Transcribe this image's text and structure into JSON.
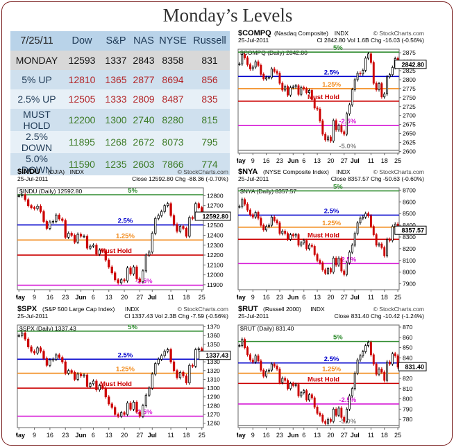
{
  "title": "Monday’s Levels",
  "table": {
    "date": "7/25/11",
    "columns": [
      "Dow",
      "S&P",
      "NAS",
      "NYSE",
      "Russell"
    ],
    "rows": [
      {
        "label": "MONDAY",
        "values": [
          "12593",
          "1337",
          "2843",
          "8358",
          "831"
        ],
        "color": "#111111"
      },
      {
        "label": "5% UP",
        "values": [
          "12810",
          "1365",
          "2877",
          "8694",
          "856"
        ],
        "color": "#b3272a"
      },
      {
        "label": "2.5% UP",
        "values": [
          "12505",
          "1333",
          "2809",
          "8487",
          "835"
        ],
        "color": "#b3272a"
      },
      {
        "label": "MUST HOLD",
        "values": [
          "12200",
          "1300",
          "2740",
          "8280",
          "815"
        ],
        "color": "#3c7a25"
      },
      {
        "label": "2.5% DOWN",
        "values": [
          "11895",
          "1268",
          "2672",
          "8073",
          "795"
        ],
        "color": "#3c7a25"
      },
      {
        "label": "5.0% DOWN",
        "values": [
          "11590",
          "1235",
          "2603",
          "7866",
          "774"
        ],
        "color": "#3c7a25"
      }
    ]
  },
  "colors": {
    "level5": "#2e8b2e",
    "level2_5": "#0000cc",
    "level1_25": "#f28a1a",
    "must_hold": "#cc0000",
    "down2_5": "#d61ad6",
    "down5": "#888888",
    "up_candle": "#000000",
    "down_candle": "#cc0000"
  },
  "chart_data": [
    {
      "type": "candlestick",
      "symbol": "$COMPQ",
      "name": "(Nasdaq Composite)",
      "exchange": "INDX",
      "brand": "© StockCharts.com",
      "date": "25-Jul-2011",
      "stats": "Cl 2842.80  Vol 1.6B  Chg -16.03 (-0.56%)",
      "legend": "$COMPQ (Daily) 2842.80",
      "last_price": "2842.80",
      "yticks": [
        2600,
        2625,
        2650,
        2675,
        2700,
        2725,
        2750,
        2775,
        2800,
        2825,
        2850,
        2875
      ],
      "ylim": [
        2595,
        2885
      ],
      "xticks": [
        "May",
        "9",
        "16",
        "23",
        "Jun",
        "6",
        "13",
        "20",
        "27",
        "Jul",
        "11",
        "18",
        "25"
      ],
      "levels": [
        {
          "label": "5%",
          "value": 2877,
          "color": "#2e8b2e"
        },
        {
          "label": "2.5%",
          "value": 2809,
          "color": "#0000cc"
        },
        {
          "label": "1.25%",
          "value": 2775,
          "color": "#f28a1a"
        },
        {
          "label": "Must Hold",
          "value": 2740,
          "color": "#cc0000"
        },
        {
          "label": "-2.5%",
          "value": 2672,
          "color": "#d61ad6"
        },
        {
          "label": "-5.0%",
          "value": 2603,
          "color": "#888888"
        }
      ],
      "closes": [
        2844,
        2870,
        2861,
        2842,
        2830,
        2835,
        2850,
        2840,
        2815,
        2802,
        2806,
        2806,
        2830,
        2823,
        2818,
        2790,
        2771,
        2781,
        2757,
        2778,
        2780,
        2783,
        2759,
        2778,
        2775,
        2764,
        2770,
        2745,
        2721,
        2718,
        2685,
        2648,
        2632,
        2640,
        2629,
        2686,
        2660,
        2672,
        2655,
        2648,
        2705,
        2730,
        2772,
        2800,
        2818,
        2816,
        2826,
        2860,
        2872,
        2848,
        2790,
        2772,
        2789,
        2752,
        2760,
        2808,
        2814,
        2834,
        2859,
        2843
      ]
    },
    {
      "type": "candlestick",
      "symbol": "$INDU",
      "name": "(DJIA)",
      "exchange": "INDX",
      "brand": "© StockCharts.com",
      "date": "25-Jul-2011",
      "stats": "Close 12592.80  Chg -88.36 (-0.70%)",
      "legend": "$INDU (Daily) 12592.80",
      "last_price": "12592.80",
      "yticks": [
        11900,
        12000,
        12100,
        12200,
        12300,
        12400,
        12500,
        12600,
        12700,
        12800
      ],
      "ylim": [
        11850,
        12880
      ],
      "xticks": [
        "May",
        "9",
        "16",
        "23",
        "Jun",
        "6",
        "13",
        "20",
        "27",
        "Jul",
        "11",
        "18",
        "25"
      ],
      "levels": [
        {
          "label": "5%",
          "value": 12810,
          "color": "#2e8b2e"
        },
        {
          "label": "2.5%",
          "value": 12505,
          "color": "#0000cc"
        },
        {
          "label": "1.25%",
          "value": 12352,
          "color": "#f28a1a"
        },
        {
          "label": "Must Hold",
          "value": 12200,
          "color": "#cc0000"
        },
        {
          "label": "-2.5%",
          "value": 11895,
          "color": "#d61ad6"
        }
      ],
      "closes": [
        12800,
        12810,
        12760,
        12700,
        12680,
        12670,
        12695,
        12640,
        12540,
        12470,
        12535,
        12540,
        12605,
        12565,
        12550,
        12380,
        12420,
        12400,
        12330,
        12410,
        12390,
        12390,
        12270,
        12290,
        12300,
        12210,
        12250,
        12240,
        12150,
        12080,
        12020,
        11950,
        11920,
        11950,
        11940,
        12070,
        12010,
        12080,
        11960,
        11930,
        12040,
        12200,
        12230,
        12420,
        12570,
        12600,
        12640,
        12700,
        12720,
        12600,
        12510,
        12440,
        12490,
        12470,
        12390,
        12580,
        12570,
        12720,
        12680,
        12593
      ]
    },
    {
      "type": "candlestick",
      "symbol": "$NYA",
      "name": "(NYSE Composite Index)",
      "exchange": "INDX",
      "brand": "© StockCharts.com",
      "date": "25-Jul-2011",
      "stats": "Close 8357.57  Chg -50.63 (-0.60%)",
      "legend": "$NYA (Daily) 8357.57",
      "last_price": "8357.57",
      "yticks": [
        7900,
        8000,
        8100,
        8200,
        8300,
        8400,
        8500,
        8600,
        8700
      ],
      "ylim": [
        7850,
        8720
      ],
      "xticks": [
        "May",
        "9",
        "16",
        "23",
        "Jun",
        "6",
        "13",
        "20",
        "27",
        "Jul",
        "11",
        "18",
        "25"
      ],
      "levels": [
        {
          "label": "5%",
          "value": 8694,
          "color": "#2e8b2e"
        },
        {
          "label": "2.5%",
          "value": 8487,
          "color": "#0000cc"
        },
        {
          "label": "1.25%",
          "value": 8384,
          "color": "#f28a1a"
        },
        {
          "label": "Must Hold",
          "value": 8280,
          "color": "#cc0000"
        },
        {
          "label": "-2.5%",
          "value": 8073,
          "color": "#d61ad6"
        }
      ],
      "closes": [
        8560,
        8620,
        8580,
        8530,
        8490,
        8470,
        8510,
        8460,
        8400,
        8360,
        8390,
        8400,
        8470,
        8440,
        8420,
        8330,
        8350,
        8330,
        8280,
        8320,
        8310,
        8320,
        8230,
        8250,
        8270,
        8200,
        8230,
        8220,
        8150,
        8100,
        8080,
        8020,
        7990,
        8030,
        8000,
        8120,
        8060,
        8120,
        8010,
        7980,
        8080,
        8170,
        8230,
        8330,
        8420,
        8460,
        8470,
        8500,
        8480,
        8390,
        8320,
        8230,
        8240,
        8210,
        8140,
        8280,
        8270,
        8390,
        8410,
        8358
      ]
    },
    {
      "type": "candlestick",
      "symbol": "$SPX",
      "name": "(S&P 500 Large Cap Index)",
      "exchange": "INDX",
      "brand": "© StockCharts.com",
      "date": "25-Jul-2011",
      "stats": "Cl 1337.43  Vol 2.3B  Chg -7.59 (-0.56%)",
      "legend": "$SPX (Daily) 1337.43",
      "last_price": "1337.43",
      "yticks": [
        1260,
        1270,
        1280,
        1290,
        1300,
        1310,
        1320,
        1330,
        1340,
        1350,
        1360,
        1370
      ],
      "ylim": [
        1255,
        1372
      ],
      "xticks": [
        "May",
        "9",
        "16",
        "23",
        "Jun",
        "6",
        "13",
        "20",
        "27",
        "Jul",
        "11",
        "18",
        "25"
      ],
      "levels": [
        {
          "label": "5%",
          "value": 1365,
          "color": "#2e8b2e"
        },
        {
          "label": "2.5%",
          "value": 1333,
          "color": "#0000cc"
        },
        {
          "label": "1.25%",
          "value": 1317,
          "color": "#f28a1a"
        },
        {
          "label": "Must Hold",
          "value": 1300,
          "color": "#cc0000"
        },
        {
          "label": "-2.5%",
          "value": 1268,
          "color": "#d61ad6"
        }
      ],
      "closes": [
        1360,
        1363,
        1356,
        1347,
        1342,
        1340,
        1346,
        1342,
        1334,
        1326,
        1332,
        1333,
        1338,
        1335,
        1330,
        1317,
        1320,
        1318,
        1310,
        1316,
        1314,
        1315,
        1302,
        1305,
        1308,
        1298,
        1303,
        1300,
        1290,
        1282,
        1278,
        1270,
        1268,
        1272,
        1270,
        1283,
        1276,
        1284,
        1273,
        1268,
        1280,
        1292,
        1300,
        1316,
        1328,
        1333,
        1337,
        1342,
        1344,
        1330,
        1320,
        1312,
        1318,
        1314,
        1306,
        1326,
        1325,
        1344,
        1345,
        1337
      ]
    },
    {
      "type": "candlestick",
      "symbol": "$RUT",
      "name": "(Russell 2000)",
      "exchange": "INDX",
      "brand": "© StockCharts.com",
      "date": "25-Jul-2011",
      "stats": "Close 831.40  Chg -10.42 (-1.24%)",
      "legend": "$RUT (Daily) 831.40",
      "last_price": "831.40",
      "yticks": [
        780,
        790,
        800,
        810,
        820,
        830,
        840,
        850,
        860,
        870
      ],
      "ylim": [
        772,
        872
      ],
      "xticks": [
        "May",
        "9",
        "16",
        "23",
        "Jun",
        "6",
        "13",
        "20",
        "27",
        "Jul",
        "11",
        "18",
        "25"
      ],
      "levels": [
        {
          "label": "5%",
          "value": 856,
          "color": "#2e8b2e"
        },
        {
          "label": "2.5%",
          "value": 835,
          "color": "#0000cc"
        },
        {
          "label": "1.25%",
          "value": 825,
          "color": "#f28a1a"
        },
        {
          "label": "Must Hold",
          "value": 815,
          "color": "#cc0000"
        },
        {
          "label": "-2.5%",
          "value": 795,
          "color": "#d61ad6"
        },
        {
          "label": "-5.0%",
          "value": 774,
          "color": "#888888"
        }
      ],
      "closes": [
        852,
        858,
        850,
        843,
        838,
        836,
        842,
        837,
        828,
        822,
        827,
        828,
        834,
        832,
        829,
        816,
        820,
        818,
        810,
        815,
        813,
        814,
        803,
        806,
        808,
        799,
        804,
        801,
        792,
        786,
        784,
        778,
        776,
        780,
        778,
        790,
        784,
        791,
        782,
        778,
        790,
        803,
        810,
        825,
        838,
        842,
        846,
        852,
        855,
        843,
        834,
        824,
        829,
        826,
        818,
        836,
        834,
        844,
        842,
        831
      ]
    }
  ]
}
